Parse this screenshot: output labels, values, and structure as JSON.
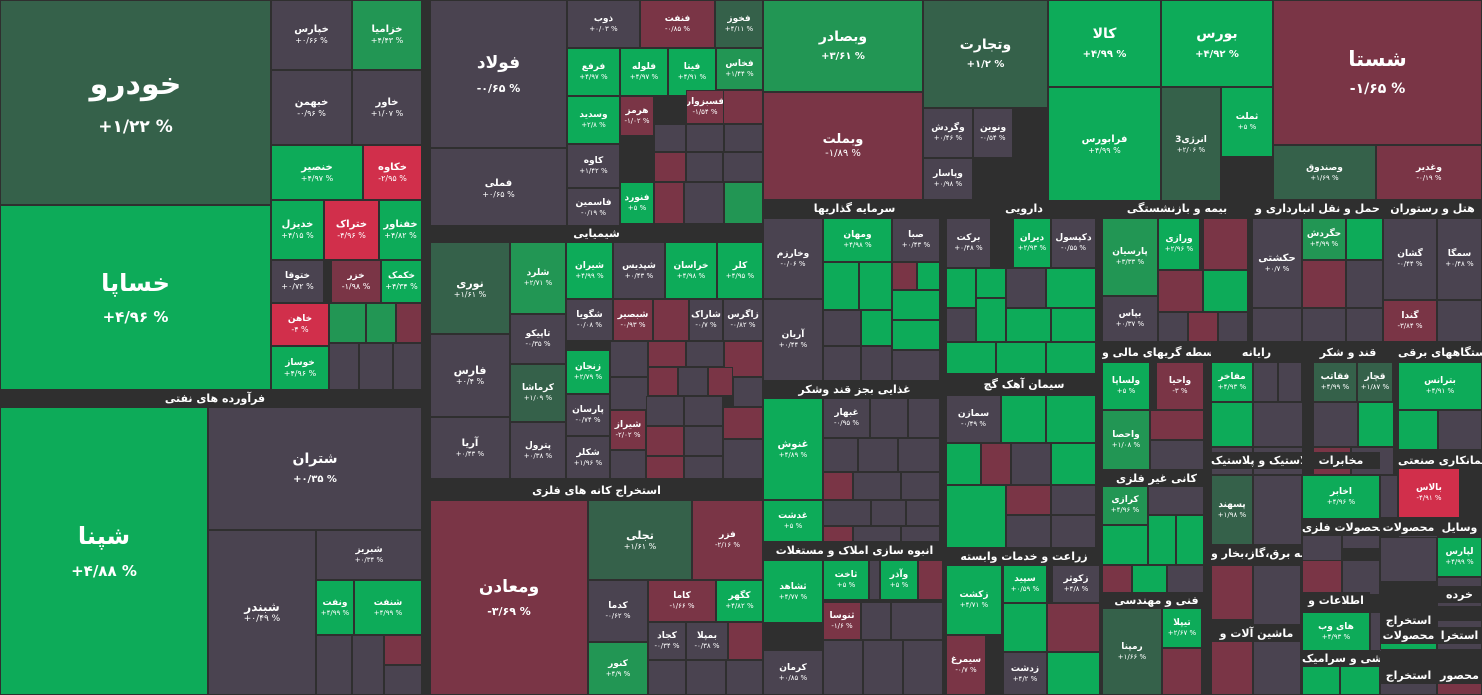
{
  "colors": {
    "strong_green": "#0dab59",
    "green": "#229654",
    "dark_green": "#35614a",
    "neutral": "#4a4350",
    "dark_red": "#7a3546",
    "red": "#d12f4b",
    "background": "#2f2f2f"
  },
  "sections": {
    "khodro": "فرآورده های نفتی",
    "shimiaei": "شیمیایی",
    "estekhraj": "استخراج کانه های فلزی",
    "sarmaye": "سرمایه گذاریها",
    "daroei": "دارویی",
    "bime": "بیمه و بازنشستگی",
    "haml": "حمل و نقل انبارداری و",
    "hotel": "هتل و رستوران",
    "ghazaei": "غذایی بجز قند وشکر",
    "siman": "سیمان آهک گچ",
    "vaseteh": "واسطه گریهای مالی و",
    "rayaneh": "رایانه",
    "ghand": "قند و شکر",
    "dastgah": "دستگاههای برقی",
    "anbooh": "انبوه سازی املاک و مستغلات",
    "kani": "کانی غیر فلزی",
    "lastik": "لاستیک و پلاستیک",
    "mokhaberat": "مخابرات",
    "paymankari": "پیمانکاری صنعتی",
    "zeraat": "زراعت و خدمات وابسته",
    "arzeh": "عرضه برق،گاز،بخار و",
    "mahsulat_felezi": "محصولات فلزی",
    "mahsulat": "محصولات",
    "vasayel": "وسایل",
    "fanni": "فنی و مهندسی",
    "mashin": "ماشین آلات و",
    "ettelaat": "اطلاعات و",
    "estekhraj2": "استخراج",
    "kharde": "خرده",
    "kashi": "کاشی و سرامیک",
    "mahsulat2": "محصولات",
    "estekhraj3": "استخرا",
    "mahsulat3": "محه",
    "mahsur": "محصور",
    "mons": "منس",
    "estekhraj4": "استخراج"
  },
  "tiles": [
    {
      "n": "خودرو",
      "v": "+۱/۲۲ %"
    },
    {
      "n": "خساپا",
      "v": "+۴/۹۶ %"
    },
    {
      "n": "خپارس",
      "v": "+۰/۶۶ %"
    },
    {
      "n": "خزامیا",
      "v": "+۴/۴۳ %"
    },
    {
      "n": "خبهمن",
      "v": "-۰/۹۶ %"
    },
    {
      "n": "خاور",
      "v": "+۱/۰۷ %"
    },
    {
      "n": "خنصیر",
      "v": "+۴/۹۷ %"
    },
    {
      "n": "خکاوه",
      "v": "-۲/۹۵ %"
    },
    {
      "n": "خدیزل",
      "v": "+۴/۱۵ %"
    },
    {
      "n": "ختراک",
      "v": "-۴/۹۶ %"
    },
    {
      "n": "خفناور",
      "v": "+۴/۸۲ %"
    },
    {
      "n": "ختوقا",
      "v": "+۰/۷۲ %"
    },
    {
      "n": "خزر",
      "v": "-۱/۹۸ %"
    },
    {
      "n": "خکمک",
      "v": "+۴/۳۴ %"
    },
    {
      "n": "خاهن",
      "v": "-۴ %"
    },
    {
      "n": "خوساز",
      "v": "+۴/۹۶ %"
    },
    {
      "n": "فولاد",
      "v": "-۰/۶۵ %"
    },
    {
      "n": "فملی",
      "v": "+۰/۶۵ %"
    },
    {
      "n": "ذوب",
      "v": "+۰/۰۳ %"
    },
    {
      "n": "فنفت",
      "v": "-۰/۸۵ %"
    },
    {
      "n": "فخوز",
      "v": "+۴/۱۱ %"
    },
    {
      "n": "فرفع",
      "v": "+۴/۹۷ %"
    },
    {
      "n": "فلوله",
      "v": "+۴/۹۷ %"
    },
    {
      "n": "فیتا",
      "v": "+۴/۹۱ %"
    },
    {
      "n": "فخاس",
      "v": "+۱/۴۴ %"
    },
    {
      "n": "هرمز",
      "v": "-۱/۰۲ %"
    },
    {
      "n": "فسبزوار",
      "v": "-۱/۵۴ %"
    },
    {
      "n": "وسدید",
      "v": "+۲/۸ %"
    },
    {
      "n": "کاوه",
      "v": "+۱/۴۲ %"
    },
    {
      "n": "فاسمین",
      "v": "-۰/۱۹ %"
    },
    {
      "n": "فنورد",
      "v": "+۵ %"
    },
    {
      "n": "وبصادر",
      "v": "+۳/۶۱ %"
    },
    {
      "n": "وتجارت",
      "v": "+۱/۲ %"
    },
    {
      "n": "وبملت",
      "v": "-۱/۸۹ %"
    },
    {
      "n": "وگردش",
      "v": "+۰/۴۶ %"
    },
    {
      "n": "ونوین",
      "v": "-۰/۵۴ %"
    },
    {
      "n": "وپاسار",
      "v": "+۰/۹۸ %"
    },
    {
      "n": "کالا",
      "v": "+۴/۹۹ %"
    },
    {
      "n": "بورس",
      "v": "+۴/۹۲ %"
    },
    {
      "n": "فرابورس",
      "v": "+۴/۹۹ %"
    },
    {
      "n": "انرژی3",
      "v": "+۲/۰۶ %"
    },
    {
      "n": "ثملت",
      "v": "+۵ %"
    },
    {
      "n": "شستا",
      "v": "-۱/۶۵ %"
    },
    {
      "n": "وصندوق",
      "v": "+۱/۶۹ %"
    },
    {
      "n": "وغدیر",
      "v": "-۰/۱۹ %"
    },
    {
      "n": "شپنا",
      "v": "+۴/۸۸ %"
    },
    {
      "n": "شتران",
      "v": "+۰/۳۵ %"
    },
    {
      "n": "شبریز",
      "v": "+۰/۳۴ %"
    },
    {
      "n": "شبندر",
      "v": "+۰/۴۹ %"
    },
    {
      "n": "ونفت",
      "v": "+۴/۹۹ %"
    },
    {
      "n": "شنفت",
      "v": "+۴/۹۹ %"
    },
    {
      "n": "نوری",
      "v": "+۱/۶۱ %"
    },
    {
      "n": "فارس",
      "v": "+۰/۴ %"
    },
    {
      "n": "آریا",
      "v": "+۰/۴۳ %"
    },
    {
      "n": "شلرد",
      "v": "+۲/۷۱ %"
    },
    {
      "n": "تاپیکو",
      "v": "-۰/۳۵ %"
    },
    {
      "n": "کرماشا",
      "v": "+۱/۰۹ %"
    },
    {
      "n": "پترول",
      "v": "+۰/۳۸ %"
    },
    {
      "n": "شیران",
      "v": "+۴/۹۹ %"
    },
    {
      "n": "شپدیس",
      "v": "+۰/۴۳ %"
    },
    {
      "n": "خراسان",
      "v": "+۴/۹۸ %"
    },
    {
      "n": "کلر",
      "v": "+۴/۹۵ %"
    },
    {
      "n": "شگویا",
      "v": "-۰/۰۸ %"
    },
    {
      "n": "شبصیر",
      "v": "-۰/۹۳ %"
    },
    {
      "n": "شاراک",
      "v": "-۰/۷ %"
    },
    {
      "n": "زاگرس",
      "v": "-۰/۸۲ %"
    },
    {
      "n": "زنجان",
      "v": "+۲/۷۹ %"
    },
    {
      "n": "پارسان",
      "v": "-۰/۷۴ %"
    },
    {
      "n": "شیراز",
      "v": "-۲/۰۲ %"
    },
    {
      "n": "شکلر",
      "v": "+۱/۹۶ %"
    },
    {
      "n": "ومعادن",
      "v": "-۳/۶۹ %"
    },
    {
      "n": "تجلی",
      "v": "+۱/۶۱ %"
    },
    {
      "n": "فزر",
      "v": "-۲/۱۶ %"
    },
    {
      "n": "کدما",
      "v": "-۰/۶۲ %"
    },
    {
      "n": "کاما",
      "v": "-۱/۶۶ %"
    },
    {
      "n": "کگهر",
      "v": "+۴/۸۲ %"
    },
    {
      "n": "کجاد",
      "v": "-۰/۳۴ %"
    },
    {
      "n": "بمپلا",
      "v": "-۰/۳۸ %"
    },
    {
      "n": "کنور",
      "v": "+۴/۹ %"
    },
    {
      "n": "وخارزم",
      "v": "-۰/۰۶ %"
    },
    {
      "n": "ومهان",
      "v": "+۴/۹۸ %"
    },
    {
      "n": "صبا",
      "v": "+۰/۴۳ %"
    },
    {
      "n": "آریان",
      "v": "+۰/۴۴ %"
    },
    {
      "n": "برکت",
      "v": "+۰/۴۸ %"
    },
    {
      "n": "دیران",
      "v": "+۲/۹۳ %"
    },
    {
      "n": "دکپسول",
      "v": "-۰/۵۵ %"
    },
    {
      "n": "پارسیان",
      "v": "+۳/۳۳ %"
    },
    {
      "n": "ورازی",
      "v": "+۲/۹۶ %"
    },
    {
      "n": "بپاس",
      "v": "+۰/۳۷ %"
    },
    {
      "n": "حکشتی",
      "v": "+۰/۷ %"
    },
    {
      "n": "حگردش",
      "v": "+۴/۹۹ %"
    },
    {
      "n": "گشان",
      "v": "-۰/۴۴ %"
    },
    {
      "n": "سمگا",
      "v": "+۰/۴۸ %"
    },
    {
      "n": "گندا",
      "v": "-۳/۸۴ %"
    },
    {
      "n": "غنوش",
      "v": "+۴/۸۹ %"
    },
    {
      "n": "غبهار",
      "v": "-۰/۹۵ %"
    },
    {
      "n": "غدشت",
      "v": "+۵ %"
    },
    {
      "n": "سمازن",
      "v": "-۰/۴۹ %"
    },
    {
      "n": "ولساپا",
      "v": "+۵ %"
    },
    {
      "n": "واحیا",
      "v": "-۳ %"
    },
    {
      "n": "واحصا",
      "v": "+۱/۰۸ %"
    },
    {
      "n": "مفاخر",
      "v": "+۴/۹۳ %"
    },
    {
      "n": "فقاتب",
      "v": "+۴/۹۹ %"
    },
    {
      "n": "قچار",
      "v": "+۱/۸۷ %"
    },
    {
      "n": "بترانس",
      "v": "+۴/۹۱ %"
    },
    {
      "n": "کرازی",
      "v": "+۴/۹۶ %"
    },
    {
      "n": "پسهند",
      "v": "+۱/۹۸ %"
    },
    {
      "n": "اخابر",
      "v": "+۴/۹۶ %"
    },
    {
      "n": "بالاس",
      "v": "-۴/۹۱ %"
    },
    {
      "n": "ثشاهد",
      "v": "+۴/۷۷ %"
    },
    {
      "n": "ثاخت",
      "v": "+۵ %"
    },
    {
      "n": "وآذر",
      "v": "+۵ %"
    },
    {
      "n": "ثنوسا",
      "v": "-۱/۶ %"
    },
    {
      "n": "کرمان",
      "v": "+۰/۸۵ %"
    },
    {
      "n": "زکشت",
      "v": "+۴/۷۱ %"
    },
    {
      "n": "سپید",
      "v": "+۰/۵۹ %"
    },
    {
      "n": "زکوثر",
      "v": "+۴/۸ %"
    },
    {
      "n": "سیمرغ",
      "v": "-۰/۷ %"
    },
    {
      "n": "زدشت",
      "v": "+۴/۲ %"
    },
    {
      "n": "رمپنا",
      "v": "+۱/۶۶ %"
    },
    {
      "n": "تیپلا",
      "v": "+۲/۶۷ %"
    },
    {
      "n": "های وب",
      "v": "+۴/۹۳ %"
    },
    {
      "n": "لپارس",
      "v": "+۴/۹۹ %"
    }
  ]
}
